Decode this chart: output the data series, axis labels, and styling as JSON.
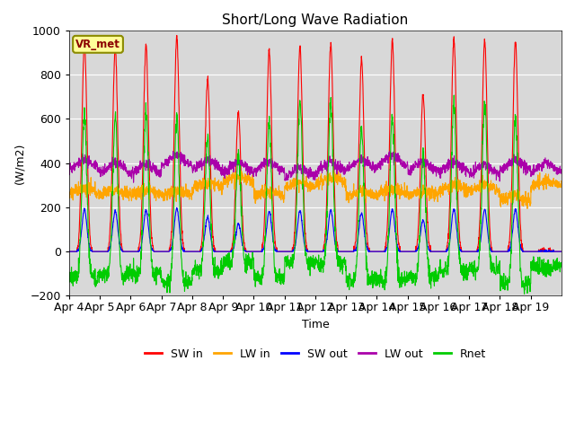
{
  "title": "Short/Long Wave Radiation",
  "ylabel": "(W/m2)",
  "xlabel": "Time",
  "ylim": [
    -200,
    1000
  ],
  "background_color": "#d8d8d8",
  "station_label": "VR_met",
  "x_tick_labels": [
    "Apr 4",
    "Apr 5",
    "Apr 6",
    "Apr 7",
    "Apr 8",
    "Apr 9",
    "Apr 10",
    "Apr 11",
    "Apr 12",
    "Apr 13",
    "Apr 14",
    "Apr 15",
    "Apr 16",
    "Apr 17",
    "Apr 18",
    "Apr 19"
  ],
  "series": {
    "SW_in": {
      "color": "#ff0000",
      "label": "SW in"
    },
    "LW_in": {
      "color": "#ffa500",
      "label": "LW in"
    },
    "SW_out": {
      "color": "#0000ff",
      "label": "SW out"
    },
    "LW_out": {
      "color": "#aa00aa",
      "label": "LW out"
    },
    "Rnet": {
      "color": "#00cc00",
      "label": "Rnet"
    }
  },
  "sw_in_peaks": [
    950,
    920,
    940,
    970,
    780,
    630,
    910,
    930,
    940,
    870,
    960,
    710,
    960,
    960,
    950,
    0
  ],
  "lw_in_base": 270,
  "lw_out_base": 360,
  "rnet_night": -75,
  "figsize": [
    6.4,
    4.8
  ],
  "dpi": 100
}
